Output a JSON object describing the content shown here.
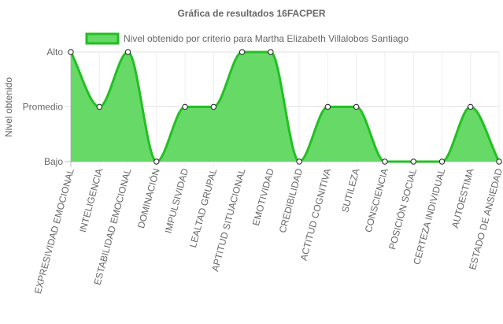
{
  "chart_data": {
    "type": "area",
    "title": "Gráfica de resultados 16FACPER",
    "xlabel": "",
    "ylabel": "Nivel obtenido",
    "y_levels": [
      "Bajo",
      "Promedio",
      "Alto"
    ],
    "ylim": [
      0,
      2
    ],
    "grid": true,
    "legend_position": "top",
    "categories": [
      "EXPRESIVIDAD EMOCIONAL",
      "INTELIGENCIA",
      "ESTABILIDAD EMOCIONAL",
      "DOMINACIÓN",
      "IMPULSIVIDAD",
      "LEALTAD GRUPAL",
      "APTITUD SITUACIONAL",
      "EMOTIVIDAD",
      "CREDIBILIDAD",
      "ACTITUD COGNITIVA",
      "SUTILEZA",
      "CONSCIENCIA",
      "POSICIÓN SOCIAL",
      "CERTEZA INDIVIDUAL",
      "AUTOESTIMA",
      "ESTADO DE ANSIEDAD"
    ],
    "series": [
      {
        "name": "Nivel obtenido por criterio para Martha Elizabeth Villalobos Santiago",
        "values": [
          2,
          1,
          2,
          0,
          1,
          1,
          2,
          2,
          0,
          1,
          1,
          0,
          0,
          0,
          1,
          0
        ],
        "fill_color": "#66d966",
        "line_color": "#22c022"
      }
    ]
  }
}
